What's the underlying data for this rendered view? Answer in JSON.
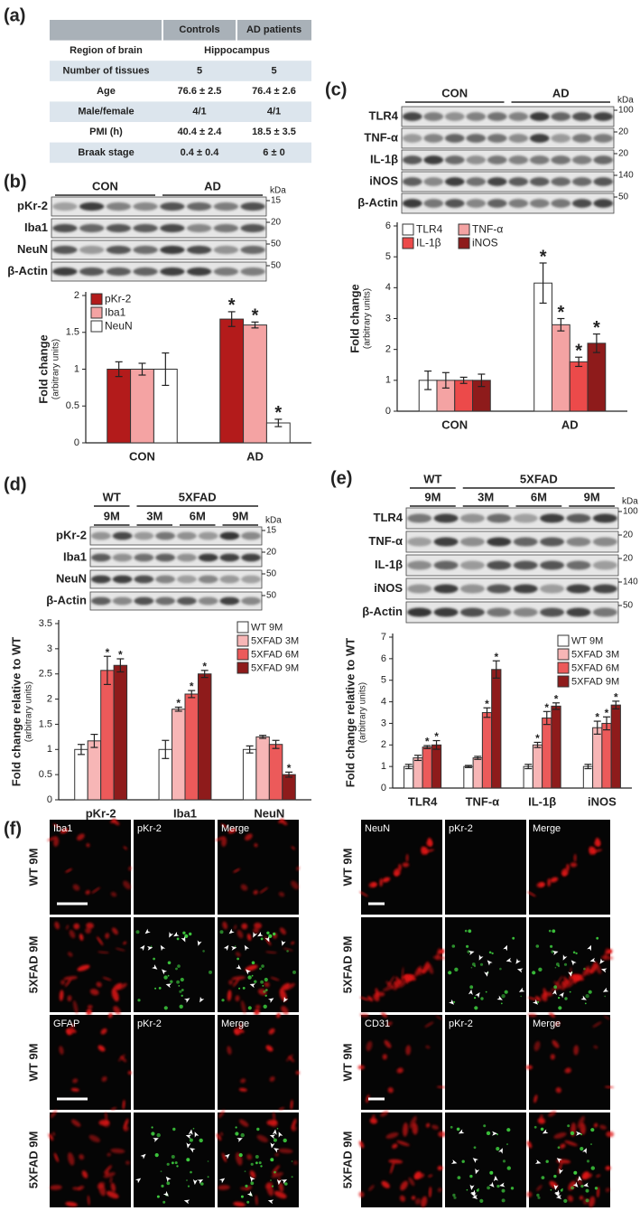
{
  "panel_labels": [
    "(a)",
    "(b)",
    "(c)",
    "(d)",
    "(e)",
    "(f)"
  ],
  "table": {
    "columns": [
      "Controls",
      "AD patients"
    ],
    "rows": [
      [
        "Region of brain",
        "Hippocampus"
      ],
      [
        "Number of tissues",
        "5",
        "5"
      ],
      [
        "Age",
        "76.6 ± 2.5",
        "76.4 ± 2.6"
      ],
      [
        "Male/female",
        "4/1",
        "4/1"
      ],
      [
        "PMI (h)",
        "40.4 ± 2.4",
        "18.5 ± 3.5"
      ],
      [
        "Braak stage",
        "0.4 ± 0.4",
        "6 ± 0"
      ]
    ]
  },
  "blots": [
    {
      "groups": [
        {
          "name": "CON"
        },
        {
          "name": "AD"
        }
      ],
      "unit": "kDa",
      "rows": [
        {
          "name": "pKr-2",
          "kda": 15
        },
        {
          "name": "Iba1",
          "kda": 20
        },
        {
          "name": "NeuN",
          "kda": 50
        },
        {
          "name": "β-Actin",
          "kda": 50
        }
      ]
    },
    {
      "groups": [
        {
          "name": "CON"
        },
        {
          "name": "AD"
        }
      ],
      "unit": "kDa",
      "rows": [
        {
          "name": "TLR4",
          "kda": 100
        },
        {
          "name": "TNF-α",
          "kda": 20
        },
        {
          "name": "IL-1β",
          "kda": 20
        },
        {
          "name": "iNOS",
          "kda": 140
        },
        {
          "name": "β-Actin",
          "kda": 50
        }
      ]
    },
    {
      "groups": [
        {
          "name": "WT",
          "subgroups": [
            "9M"
          ]
        },
        {
          "name": "5XFAD",
          "subgroups": [
            "3M",
            "6M",
            "9M"
          ]
        }
      ],
      "unit": "kDa",
      "rows": [
        {
          "name": "pKr-2",
          "kda": 15
        },
        {
          "name": "Iba1",
          "kda": 20
        },
        {
          "name": "NeuN",
          "kda": 50
        },
        {
          "name": "β-Actin",
          "kda": 50
        }
      ]
    },
    {
      "groups": [
        {
          "name": "WT",
          "subgroups": [
            "9M"
          ]
        },
        {
          "name": "5XFAD",
          "subgroups": [
            "3M",
            "6M",
            "9M"
          ]
        }
      ],
      "unit": "kDa",
      "rows": [
        {
          "name": "TLR4",
          "kda": 100
        },
        {
          "name": "TNF-α",
          "kda": 20
        },
        {
          "name": "IL-1β",
          "kda": 20
        },
        {
          "name": "iNOS",
          "kda": 140
        },
        {
          "name": "β-Actin",
          "kda": 50
        }
      ]
    }
  ],
  "chart_data": [
    {
      "type": "bar",
      "ylabel": "Fold change",
      "ylabel_sub": "(arbitrary units)",
      "categories": [
        "CON",
        "AD"
      ],
      "series": [
        {
          "name": "pKr-2",
          "color": "#b31b1b",
          "values": [
            1,
            1.68
          ],
          "errors": [
            0.1,
            0.1
          ],
          "marks": [
            null,
            "*"
          ]
        },
        {
          "name": "Iba1",
          "color": "#f4a3a3",
          "values": [
            1,
            1.6
          ],
          "errors": [
            0.08,
            0.04
          ],
          "marks": [
            null,
            "*"
          ]
        },
        {
          "name": "NeuN",
          "color": "#ffffff",
          "values": [
            1,
            0.27
          ],
          "errors": [
            0.22,
            0.05
          ],
          "marks": [
            null,
            "*"
          ]
        }
      ],
      "ylim": [
        0,
        2
      ],
      "yticks": [
        0,
        0.5,
        1,
        1.5,
        2
      ],
      "legend": "upper left"
    },
    {
      "type": "bar",
      "ylabel": "Fold change",
      "ylabel_sub": "(arbitrary units)",
      "categories": [
        "CON",
        "AD"
      ],
      "series": [
        {
          "name": "TLR4",
          "color": "#ffffff",
          "values": [
            1,
            4.15
          ],
          "errors": [
            0.3,
            0.65
          ],
          "marks": [
            null,
            "*"
          ]
        },
        {
          "name": "TNF-α",
          "color": "#f4a3a3",
          "values": [
            1,
            2.8
          ],
          "errors": [
            0.25,
            0.2
          ],
          "marks": [
            null,
            "*"
          ]
        },
        {
          "name": "IL-1β",
          "color": "#ec4a4a",
          "values": [
            1,
            1.6
          ],
          "errors": [
            0.1,
            0.15
          ],
          "marks": [
            null,
            "*"
          ]
        },
        {
          "name": "iNOS",
          "color": "#8e1b1b",
          "values": [
            1,
            2.2
          ],
          "errors": [
            0.2,
            0.3
          ],
          "marks": [
            null,
            "*"
          ]
        }
      ],
      "ylim": [
        0,
        6
      ],
      "yticks": [
        0,
        1,
        2,
        3,
        4,
        5,
        6
      ],
      "legend": "upper left"
    },
    {
      "type": "bar",
      "ylabel": "Fold change relative to WT",
      "ylabel_sub": "(arbitrary units)",
      "categories": [
        "pKr-2",
        "Iba1",
        "NeuN"
      ],
      "series": [
        {
          "name": "WT 9M",
          "color": "#ffffff",
          "values": [
            1,
            1,
            1
          ],
          "errors": [
            0.1,
            0.18,
            0.07
          ],
          "marks": [
            null,
            null,
            null
          ]
        },
        {
          "name": "5XFAD 3M",
          "color": "#f7b6b6",
          "values": [
            1.17,
            1.8,
            1.25
          ],
          "errors": [
            0.13,
            0.04,
            0.03
          ],
          "marks": [
            null,
            "*",
            null
          ]
        },
        {
          "name": "5XFAD 6M",
          "color": "#ec5a5a",
          "values": [
            2.57,
            2.1,
            1.1
          ],
          "errors": [
            0.28,
            0.07,
            0.08
          ],
          "marks": [
            "*",
            "*",
            null
          ]
        },
        {
          "name": "5XFAD 9M",
          "color": "#8e1b1b",
          "values": [
            2.67,
            2.5,
            0.5
          ],
          "errors": [
            0.13,
            0.07,
            0.05
          ],
          "marks": [
            "*",
            "*",
            "*"
          ]
        }
      ],
      "ylim": [
        0,
        3.5
      ],
      "yticks": [
        0,
        0.5,
        1,
        1.5,
        2,
        2.5,
        3,
        3.5
      ],
      "legend": "upper right"
    },
    {
      "type": "bar",
      "ylabel": "Fold change relative to WT",
      "ylabel_sub": "(arbitrary units)",
      "categories": [
        "TLR4",
        "TNF-α",
        "IL-1β",
        "iNOS"
      ],
      "series": [
        {
          "name": "WT 9M",
          "color": "#ffffff",
          "values": [
            1,
            1,
            1,
            1
          ],
          "errors": [
            0.1,
            0.05,
            0.1,
            0.1
          ],
          "marks": [
            null,
            null,
            null,
            null
          ]
        },
        {
          "name": "5XFAD 3M",
          "color": "#f7b6b6",
          "values": [
            1.4,
            1.4,
            2,
            2.8
          ],
          "errors": [
            0.12,
            0.07,
            0.12,
            0.3
          ],
          "marks": [
            null,
            null,
            "*",
            "*"
          ]
        },
        {
          "name": "5XFAD 6M",
          "color": "#ec5a5a",
          "values": [
            1.9,
            3.5,
            3.25,
            3
          ],
          "errors": [
            0.07,
            0.22,
            0.3,
            0.3
          ],
          "marks": [
            "*",
            "*",
            "*",
            "*"
          ]
        },
        {
          "name": "5XFAD 9M",
          "color": "#8e1b1b",
          "values": [
            2,
            5.5,
            3.8,
            3.85
          ],
          "errors": [
            0.2,
            0.4,
            0.15,
            0.18
          ],
          "marks": [
            "*",
            "*",
            "*",
            "*"
          ]
        }
      ],
      "ylim": [
        0,
        7
      ],
      "yticks": [
        0,
        1,
        2,
        3,
        4,
        5,
        6,
        7
      ],
      "legend": "upper right"
    }
  ],
  "micrographs": [
    {
      "blocks": [
        {
          "columns": [
            "Iba1",
            "pKr-2",
            "Merge"
          ],
          "rows": [
            "WT 9M",
            "5XFAD 9M"
          ]
        },
        {
          "columns": [
            "GFAP",
            "pKr-2",
            "Merge"
          ],
          "rows": [
            "WT 9M",
            "5XFAD 9M"
          ]
        }
      ]
    },
    {
      "blocks": [
        {
          "columns": [
            "NeuN",
            "pKr-2",
            "Merge"
          ],
          "rows": [
            "WT 9M",
            "5XFAD 9M"
          ]
        },
        {
          "columns": [
            "CD31",
            "pKr-2",
            "Merge"
          ],
          "rows": [
            "WT 9M",
            "5XFAD 9M"
          ]
        }
      ]
    }
  ]
}
